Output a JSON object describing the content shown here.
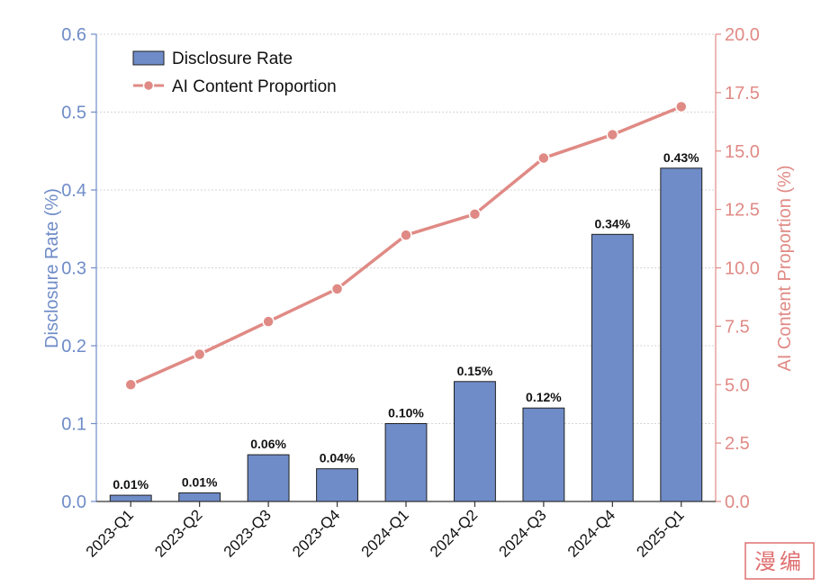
{
  "chart_data": {
    "type": "bar+line",
    "categories": [
      "2023-Q1",
      "2023-Q2",
      "2023-Q3",
      "2023-Q4",
      "2024-Q1",
      "2024-Q2",
      "2024-Q3",
      "2024-Q4",
      "2025-Q1"
    ],
    "series": [
      {
        "name": "Disclosure Rate",
        "type": "bar",
        "axis": "left",
        "values": [
          0.008,
          0.011,
          0.06,
          0.042,
          0.1,
          0.154,
          0.12,
          0.343,
          0.428
        ],
        "labels": [
          "0.01%",
          "0.01%",
          "0.06%",
          "0.04%",
          "0.10%",
          "0.15%",
          "0.12%",
          "0.34%",
          "0.43%"
        ]
      },
      {
        "name": "AI Content Proportion",
        "type": "line",
        "axis": "right",
        "values": [
          5.0,
          6.3,
          7.7,
          9.1,
          11.4,
          12.3,
          14.7,
          15.7,
          16.9
        ]
      }
    ],
    "ylabel": "Disclosure Rate (%)",
    "ylabel_right": "AI Content Proportion (%)",
    "ylim": [
      0,
      0.6
    ],
    "yticks": [
      0.0,
      0.1,
      0.2,
      0.3,
      0.4,
      0.5,
      0.6
    ],
    "ytick_labels": [
      "0.0",
      "0.1",
      "0.2",
      "0.3",
      "0.4",
      "0.5",
      "0.6"
    ],
    "ylim_right": [
      0,
      20
    ],
    "yticks_right": [
      0,
      2.5,
      5,
      7.5,
      10,
      12.5,
      15,
      17.5,
      20
    ],
    "ytick_labels_right": [
      "0.0",
      "2.5",
      "5.0",
      "7.5",
      "10.0",
      "12.5",
      "15.0",
      "17.5",
      "20.0"
    ],
    "grid": true,
    "legend_position": "top-left",
    "legend": [
      "Disclosure Rate",
      "AI Content Proportion"
    ],
    "colors": {
      "bar": "#6f8cc8",
      "bar_edge": "#1f1f1f",
      "line": "#e08a85",
      "left_axis": "#6f8cc8",
      "right_axis": "#e08a85",
      "grid": "#c8c8c8"
    }
  },
  "watermark": {
    "text": "漫编"
  }
}
